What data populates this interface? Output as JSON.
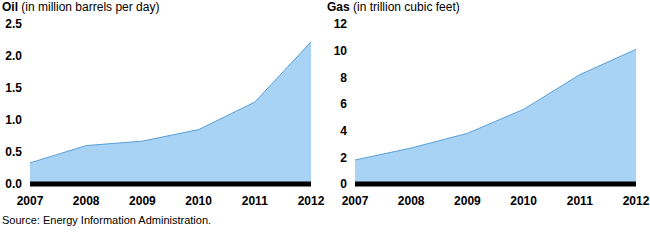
{
  "chart_data": [
    {
      "type": "area",
      "title": "Oil (in million barrels per day)",
      "categories": [
        "2007",
        "2008",
        "2009",
        "2010",
        "2011",
        "2012"
      ],
      "values": [
        0.33,
        0.6,
        0.67,
        0.85,
        1.28,
        2.22
      ],
      "color": "#a9d3f5",
      "ylim": [
        0,
        2.5
      ],
      "yticks": [
        {
          "value": 0,
          "label": "0.0"
        },
        0.5,
        {
          "value": 1,
          "label": "1.0"
        },
        1.5,
        {
          "value": 2,
          "label": "2.0"
        },
        2.5
      ],
      "grid": false
    },
    {
      "type": "area",
      "title": "Gas (in trillion cubic feet)",
      "categories": [
        "2007",
        "2008",
        "2009",
        "2010",
        "2011",
        "2012"
      ],
      "values": [
        1.8,
        2.7,
        3.8,
        5.6,
        8.2,
        10.1
      ],
      "color": "#a9d3f5",
      "ylim": [
        0,
        12
      ],
      "yticks": [
        0,
        2,
        4,
        6,
        8,
        10,
        12
      ],
      "grid": false
    }
  ],
  "source": "Source: Energy Information Administration."
}
